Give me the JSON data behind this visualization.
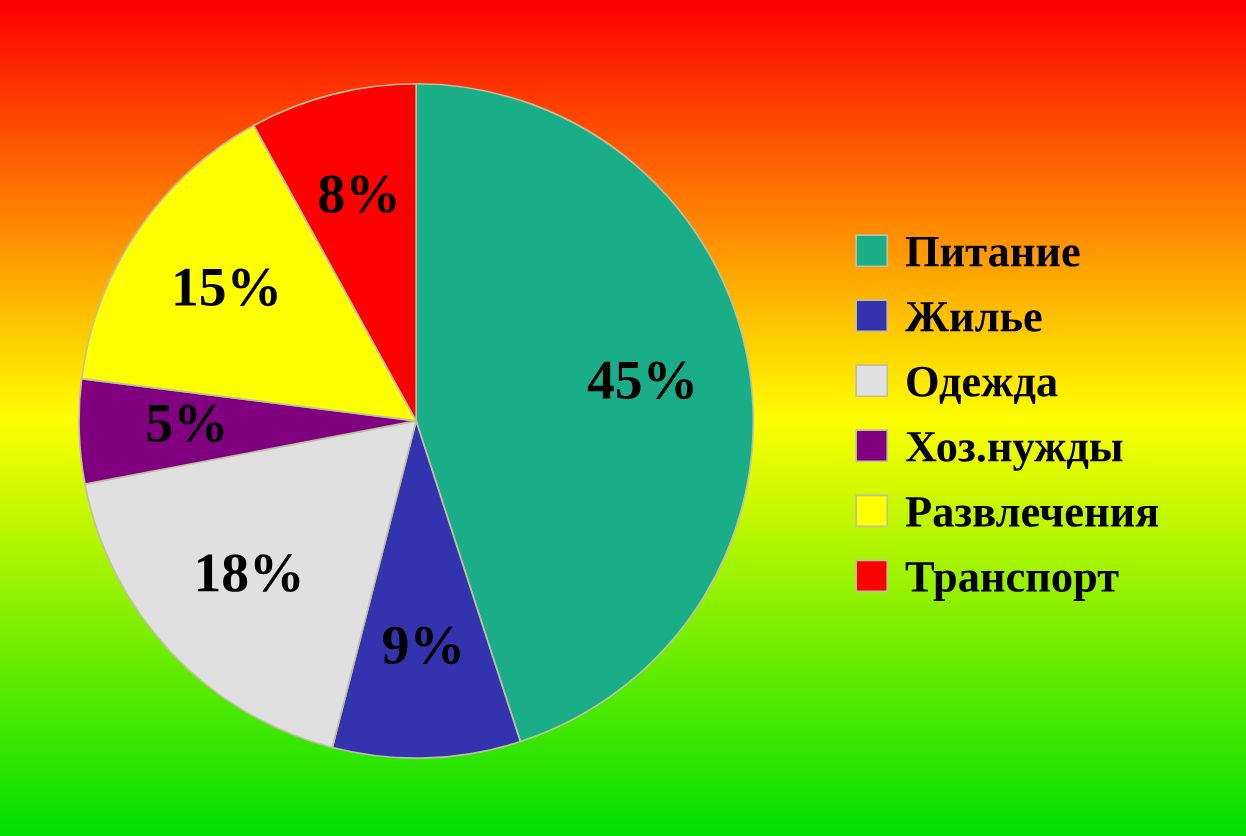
{
  "chart_data": {
    "type": "pie",
    "categories": [
      "Питание",
      "Жилье",
      "Одежда",
      "Хоз.нужды",
      "Развлечения",
      "Транспорт"
    ],
    "values": [
      45,
      9,
      18,
      5,
      15,
      8
    ],
    "colors": [
      "#1aae88",
      "#3333b0",
      "#e0e0e0",
      "#800080",
      "#ffff00",
      "#ff0000"
    ],
    "value_labels": [
      "45%",
      "9%",
      "18%",
      "5%",
      "15%",
      "8%"
    ],
    "legend": "right"
  }
}
